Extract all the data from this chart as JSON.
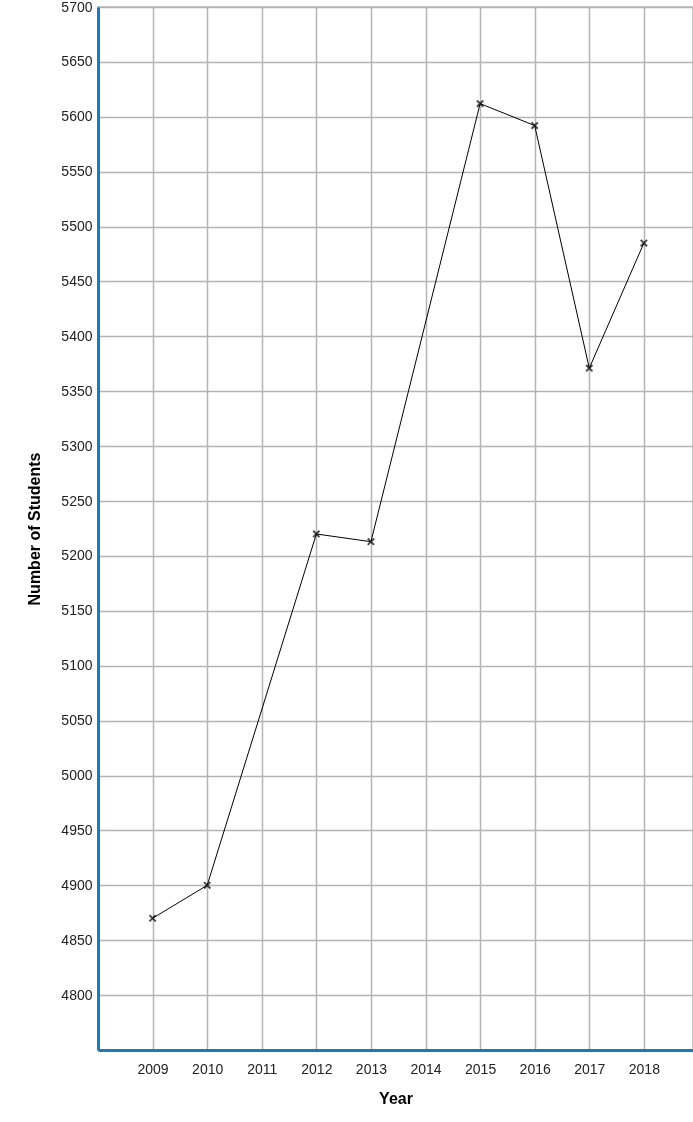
{
  "chart_data": {
    "type": "line",
    "xlabel": "Year",
    "ylabel": "Number of Students",
    "x": [
      2009,
      2010,
      2012,
      2013,
      2015,
      2016,
      2017,
      2018
    ],
    "series": [
      {
        "color": "#000000",
        "values": [
          4870,
          4900,
          5220,
          5213,
          5612,
          5592,
          5371,
          5485
        ]
      }
    ],
    "xlim": [
      2008,
      2018.9
    ],
    "xticks": [
      2009,
      2010,
      2011,
      2012,
      2013,
      2014,
      2015,
      2016,
      2017,
      2018
    ],
    "ylim": [
      4750,
      5700
    ],
    "yticks": [
      4800,
      4850,
      4900,
      4950,
      5000,
      5050,
      5100,
      5150,
      5200,
      5250,
      5300,
      5350,
      5400,
      5450,
      5500,
      5550,
      5600,
      5650,
      5700
    ],
    "grid": true,
    "marker": "cross",
    "line_style": "solid"
  }
}
